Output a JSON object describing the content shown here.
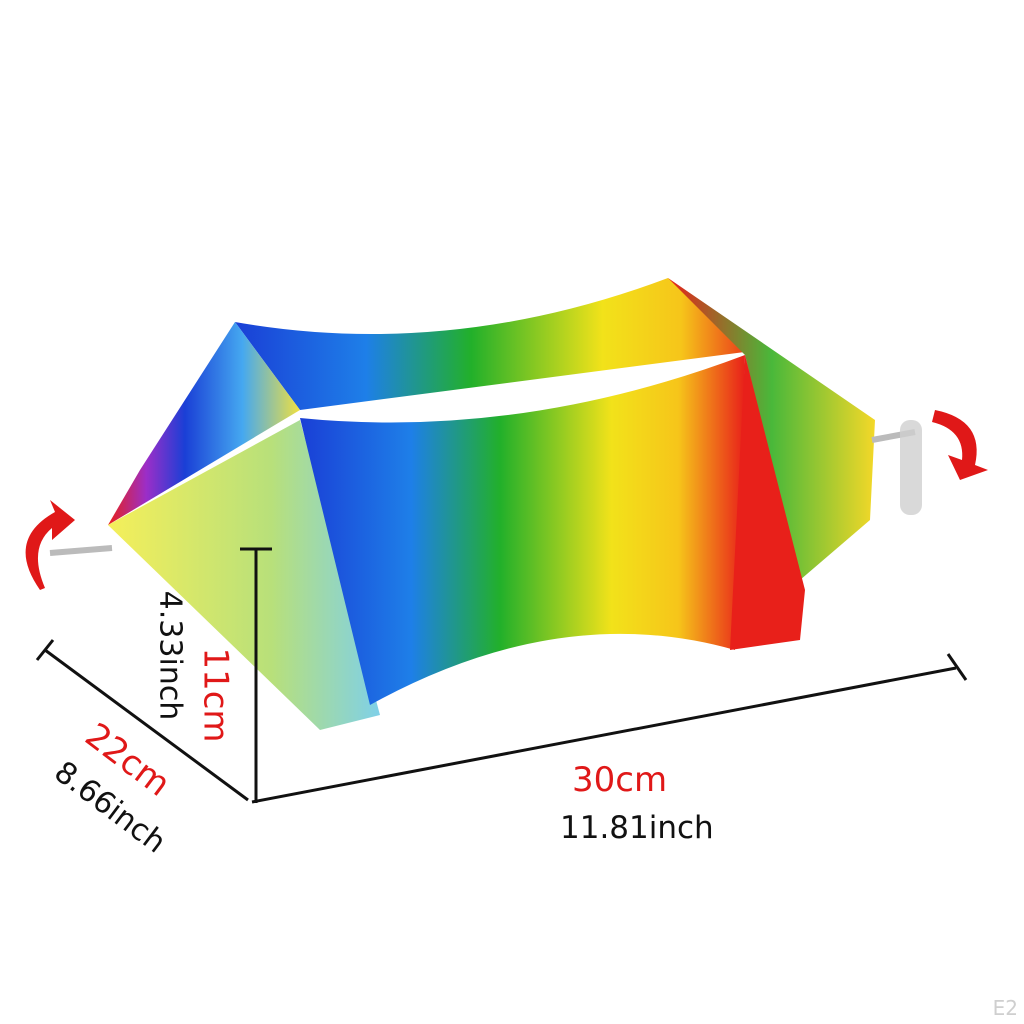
{
  "dimensions": {
    "height": {
      "metric": "11cm",
      "imperial": "4.33inch"
    },
    "depth": {
      "metric": "22cm",
      "imperial": "8.66inch"
    },
    "width": {
      "metric": "30cm",
      "imperial": "11.81inch"
    }
  },
  "watermark": "E2",
  "colors": {
    "metric_label": "#e01818",
    "imperial_label": "#111111",
    "arrow": "#e01818"
  }
}
